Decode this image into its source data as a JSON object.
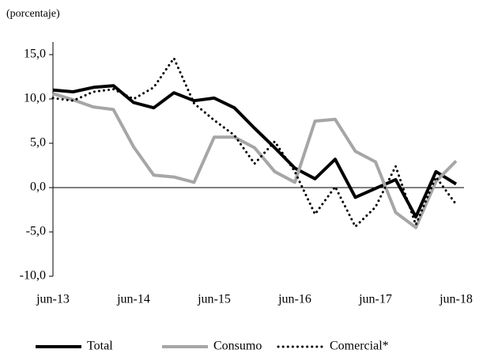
{
  "chart_data": {
    "type": "line",
    "subtitle": "(porcentaje)",
    "categories": [
      "jun-13",
      null,
      null,
      null,
      "jun-14",
      null,
      null,
      null,
      "jun-15",
      null,
      null,
      null,
      "jun-16",
      null,
      null,
      null,
      "jun-17",
      null,
      null,
      null,
      "jun-18"
    ],
    "series": [
      {
        "name": "Total",
        "color": "#000000",
        "style": "solid",
        "values": [
          11.0,
          10.8,
          11.3,
          11.5,
          9.6,
          9.0,
          10.7,
          9.8,
          10.1,
          9.0,
          6.7,
          4.5,
          2.2,
          1.0,
          3.2,
          -1.1,
          -0.1,
          0.9,
          -3.3,
          1.8,
          0.4
        ]
      },
      {
        "name": "Consumo",
        "color": "#a6a6a6",
        "style": "solid",
        "values": [
          10.6,
          9.9,
          9.1,
          8.8,
          4.6,
          1.4,
          1.2,
          0.6,
          5.7,
          5.7,
          4.5,
          1.8,
          0.6,
          7.5,
          7.7,
          4.1,
          2.9,
          -2.8,
          -4.5,
          0.7,
          3.0
        ]
      },
      {
        "name": "Comercial*",
        "color": "#000000",
        "style": "dotted",
        "values": [
          10.1,
          9.8,
          10.8,
          11.1,
          10.0,
          11.3,
          14.6,
          9.5,
          7.6,
          5.9,
          2.7,
          5.2,
          1.8,
          -3.0,
          0.1,
          -4.4,
          -2.2,
          2.4,
          -4.2,
          1.2,
          -1.9
        ]
      }
    ],
    "ylim": [
      -10,
      15
    ],
    "yticks": [
      {
        "value": -10,
        "label": "-10,0"
      },
      {
        "value": -5,
        "label": "-5,0"
      },
      {
        "value": 0,
        "label": "0,0"
      },
      {
        "value": 5,
        "label": "5,0"
      },
      {
        "value": 10,
        "label": "10,0"
      },
      {
        "value": 15,
        "label": "15,0"
      }
    ],
    "grid": false,
    "legend": "bottom"
  }
}
